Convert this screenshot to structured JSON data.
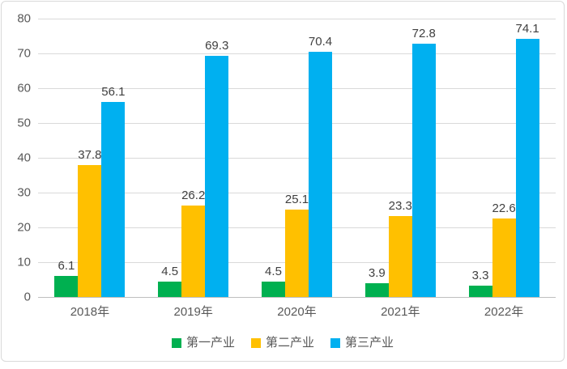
{
  "chart_data": {
    "type": "bar",
    "title": "",
    "xlabel": "",
    "ylabel": "",
    "categories": [
      "2018年",
      "2019年",
      "2020年",
      "2021年",
      "2022年"
    ],
    "series": [
      {
        "name": "第一产业",
        "color": "#00B050",
        "values": [
          6.1,
          4.5,
          4.5,
          3.9,
          3.3
        ]
      },
      {
        "name": "第二产业",
        "color": "#FFC000",
        "values": [
          37.8,
          26.2,
          25.1,
          23.3,
          22.6
        ]
      },
      {
        "name": "第三产业",
        "color": "#00B0F0",
        "values": [
          56.1,
          69.3,
          70.4,
          72.8,
          74.1
        ]
      }
    ],
    "yticks": [
      0,
      10,
      20,
      30,
      40,
      50,
      60,
      70,
      80
    ],
    "ylim": [
      0,
      80
    ],
    "grid": true,
    "data_labels": true,
    "data_label_decimals": 1,
    "legend_position": "bottom"
  },
  "colors": {
    "background": "#FFFFFF",
    "border": "#D9D9D9",
    "gridline": "#D9D9D9",
    "axis_line": "#BFBFBF",
    "axis_label_text": "#595959",
    "data_label_text": "#404040"
  }
}
